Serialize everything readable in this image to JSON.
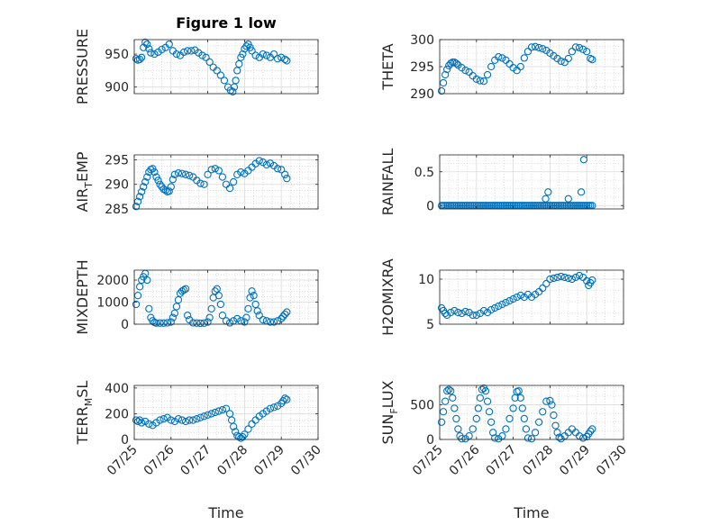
{
  "figure": {
    "title": "Figure 1 low",
    "marker_color": "#0072BD"
  },
  "chart_data": [
    {
      "type": "scatter",
      "ylabel": "PRESSURE",
      "ylabel_parts": [
        "PRESSURE"
      ],
      "xlabel": "",
      "xlim": [
        0,
        5
      ],
      "ylim": [
        890,
        972
      ],
      "yticks": [
        900,
        950
      ],
      "ytick_labels": [
        "900",
        "950"
      ],
      "show_xticklabels": false,
      "title": "Figure 1 low",
      "x": [
        0.05,
        0.1,
        0.15,
        0.2,
        0.25,
        0.3,
        0.35,
        0.4,
        0.45,
        0.55,
        0.65,
        0.75,
        0.85,
        0.95,
        1.05,
        1.15,
        1.25,
        1.35,
        1.45,
        1.55,
        1.65,
        1.75,
        1.85,
        1.95,
        2.05,
        2.15,
        2.25,
        2.35,
        2.45,
        2.55,
        2.62,
        2.68,
        2.72,
        2.76,
        2.8,
        2.85,
        2.9,
        2.95,
        3.0,
        3.05,
        3.1,
        3.15,
        3.2,
        3.3,
        3.4,
        3.5,
        3.6,
        3.7,
        3.8,
        3.9,
        4.0,
        4.1,
        4.15
      ],
      "y": [
        943,
        941,
        942,
        945,
        960,
        968,
        965,
        958,
        952,
        950,
        953,
        957,
        960,
        965,
        955,
        950,
        948,
        953,
        955,
        955,
        956,
        952,
        948,
        945,
        938,
        930,
        925,
        918,
        910,
        900,
        895,
        893,
        900,
        910,
        925,
        935,
        945,
        950,
        958,
        962,
        965,
        960,
        955,
        948,
        945,
        950,
        948,
        945,
        950,
        943,
        945,
        942,
        940
      ]
    },
    {
      "type": "scatter",
      "ylabel": "THETA",
      "ylabel_parts": [
        "THETA"
      ],
      "xlabel": "",
      "xlim": [
        0,
        5
      ],
      "ylim": [
        290,
        300
      ],
      "yticks": [
        290,
        295,
        300
      ],
      "ytick_labels": [
        "290",
        "295",
        "300"
      ],
      "show_xticklabels": false,
      "x": [
        0.05,
        0.1,
        0.15,
        0.2,
        0.25,
        0.3,
        0.35,
        0.4,
        0.45,
        0.5,
        0.6,
        0.7,
        0.8,
        0.9,
        1.0,
        1.1,
        1.2,
        1.3,
        1.4,
        1.5,
        1.6,
        1.7,
        1.8,
        1.9,
        2.0,
        2.1,
        2.2,
        2.3,
        2.4,
        2.5,
        2.6,
        2.7,
        2.8,
        2.9,
        3.0,
        3.1,
        3.2,
        3.3,
        3.4,
        3.5,
        3.6,
        3.7,
        3.8,
        3.9,
        4.0,
        4.1,
        4.15
      ],
      "y": [
        290.5,
        292,
        293.5,
        294.5,
        295.2,
        295.6,
        295.8,
        295.8,
        295.6,
        295.3,
        294.8,
        294.3,
        294,
        293.3,
        292.7,
        292.4,
        292.3,
        293.5,
        295,
        296.2,
        296.8,
        296.6,
        296.2,
        295.5,
        294.8,
        294.3,
        295,
        296.6,
        297.8,
        298.6,
        298.7,
        298.5,
        298.3,
        298,
        297.5,
        297,
        296.5,
        296,
        295.8,
        296.5,
        297.8,
        298.6,
        298.5,
        298.2,
        297.8,
        296.5,
        296.3
      ]
    },
    {
      "type": "scatter",
      "ylabel": "AIR_TEMP",
      "ylabel_parts": [
        "AIR",
        "T",
        "EMP"
      ],
      "xlabel": "",
      "xlim": [
        0,
        5
      ],
      "ylim": [
        285,
        296
      ],
      "yticks": [
        285,
        290,
        295
      ],
      "ytick_labels": [
        "285",
        "290",
        "295"
      ],
      "show_xticklabels": false,
      "x": [
        0.05,
        0.1,
        0.15,
        0.2,
        0.25,
        0.3,
        0.35,
        0.4,
        0.45,
        0.5,
        0.55,
        0.6,
        0.65,
        0.7,
        0.75,
        0.8,
        0.85,
        0.9,
        0.95,
        1.0,
        1.05,
        1.1,
        1.2,
        1.3,
        1.4,
        1.5,
        1.6,
        1.7,
        1.8,
        1.9,
        2.0,
        2.1,
        2.2,
        2.3,
        2.4,
        2.5,
        2.6,
        2.7,
        2.8,
        2.9,
        3.0,
        3.1,
        3.2,
        3.3,
        3.4,
        3.5,
        3.6,
        3.7,
        3.8,
        3.9,
        4.0,
        4.1,
        4.15
      ],
      "y": [
        285.5,
        286.5,
        287.5,
        288.5,
        289.5,
        290.5,
        291.5,
        292.5,
        293,
        293.2,
        292.5,
        291.5,
        290.8,
        290,
        289.5,
        289,
        288.8,
        288.5,
        288.6,
        289.5,
        291,
        292,
        292.3,
        292.2,
        292,
        291.8,
        291.5,
        290.8,
        290.2,
        290,
        292,
        293,
        293.2,
        292.8,
        291.5,
        290,
        289.2,
        290.5,
        292,
        292.5,
        292.2,
        292.8,
        293.5,
        294.2,
        294.8,
        294.5,
        294,
        294.3,
        293.8,
        293.2,
        293,
        292,
        291.2
      ]
    },
    {
      "type": "scatter",
      "ylabel": "RAINFALL",
      "ylabel_parts": [
        "RAINFALL"
      ],
      "xlabel": "",
      "xlim": [
        0,
        5
      ],
      "ylim": [
        -0.05,
        0.75
      ],
      "yticks": [
        0,
        0.5
      ],
      "ytick_labels": [
        "0",
        "0.5"
      ],
      "show_xticklabels": false,
      "baseline": {
        "x_start": 0.05,
        "x_end": 4.15,
        "step": 0.05,
        "y": 0
      },
      "x": [
        2.88,
        2.95,
        3.5,
        3.85,
        3.92
      ],
      "y": [
        0.1,
        0.2,
        0.1,
        0.2,
        0.68
      ]
    },
    {
      "type": "scatter",
      "ylabel": "MIXDEPTH",
      "ylabel_parts": [
        "MIXDEPTH"
      ],
      "xlabel": "",
      "xlim": [
        0,
        5
      ],
      "ylim": [
        0,
        2450
      ],
      "yticks": [
        0,
        1000,
        2000
      ],
      "ytick_labels": [
        "0",
        "1000",
        "2000"
      ],
      "show_xticklabels": false,
      "x": [
        0.05,
        0.1,
        0.15,
        0.2,
        0.25,
        0.3,
        0.35,
        0.4,
        0.45,
        0.5,
        0.55,
        0.6,
        0.7,
        0.8,
        0.9,
        1.0,
        1.05,
        1.1,
        1.15,
        1.2,
        1.25,
        1.3,
        1.35,
        1.4,
        1.45,
        1.5,
        1.6,
        1.7,
        1.8,
        1.9,
        2.0,
        2.05,
        2.1,
        2.15,
        2.2,
        2.25,
        2.3,
        2.35,
        2.4,
        2.5,
        2.6,
        2.7,
        2.8,
        2.9,
        3.0,
        3.05,
        3.1,
        3.15,
        3.2,
        3.25,
        3.3,
        3.35,
        3.4,
        3.5,
        3.6,
        3.7,
        3.8,
        3.9,
        4.0,
        4.05,
        4.1,
        4.15
      ],
      "y": [
        900,
        1300,
        1700,
        2000,
        2150,
        2300,
        2000,
        700,
        300,
        150,
        80,
        50,
        50,
        50,
        60,
        100,
        300,
        500,
        800,
        1100,
        1400,
        1500,
        1550,
        1600,
        400,
        200,
        60,
        50,
        40,
        50,
        100,
        300,
        700,
        1200,
        1500,
        1600,
        1300,
        900,
        400,
        150,
        60,
        150,
        250,
        150,
        100,
        300,
        700,
        1200,
        1500,
        1300,
        900,
        600,
        400,
        200,
        150,
        100,
        100,
        150,
        250,
        350,
        450,
        550
      ]
    },
    {
      "type": "scatter",
      "ylabel": "H2OMIXRA",
      "ylabel_parts": [
        "H2OMIXRA"
      ],
      "xlabel": "",
      "xlim": [
        0,
        5
      ],
      "ylim": [
        5,
        11
      ],
      "yticks": [
        5,
        10
      ],
      "ytick_labels": [
        "5",
        "10"
      ],
      "show_xticklabels": false,
      "x": [
        0.05,
        0.1,
        0.15,
        0.2,
        0.3,
        0.4,
        0.5,
        0.6,
        0.7,
        0.8,
        0.9,
        1.0,
        1.1,
        1.2,
        1.3,
        1.4,
        1.5,
        1.6,
        1.7,
        1.8,
        1.9,
        2.0,
        2.1,
        2.2,
        2.3,
        2.4,
        2.5,
        2.6,
        2.7,
        2.8,
        2.9,
        3.0,
        3.1,
        3.2,
        3.3,
        3.4,
        3.5,
        3.6,
        3.7,
        3.8,
        3.9,
        4.0,
        4.05,
        4.1,
        4.15
      ],
      "y": [
        6.8,
        6.5,
        6.2,
        6.0,
        6.3,
        6.5,
        6.3,
        6.2,
        6.4,
        6.3,
        6.0,
        6.0,
        6.2,
        6.5,
        6.3,
        6.6,
        6.8,
        7.0,
        7.2,
        7.4,
        7.6,
        7.8,
        8.0,
        8.2,
        8.0,
        8.3,
        8.0,
        8.3,
        8.6,
        9.0,
        9.5,
        10.0,
        10.1,
        10.2,
        10.3,
        10.2,
        10.1,
        10.0,
        10.2,
        10.4,
        10.2,
        9.8,
        9.3,
        9.6,
        9.9
      ]
    },
    {
      "type": "scatter",
      "ylabel": "TERR_MSL",
      "ylabel_parts": [
        "TERR",
        "M",
        "SL"
      ],
      "xlabel": "Time",
      "xlim": [
        0,
        5
      ],
      "ylim": [
        0,
        420
      ],
      "yticks": [
        0,
        200,
        400
      ],
      "ytick_labels": [
        "0",
        "200",
        "400"
      ],
      "show_xticklabels": true,
      "xticks": [
        0,
        1,
        2,
        3,
        4,
        5
      ],
      "xtick_labels": [
        "07/25",
        "07/26",
        "07/27",
        "07/28",
        "07/29",
        "07/30"
      ],
      "x": [
        0.05,
        0.1,
        0.15,
        0.2,
        0.3,
        0.4,
        0.5,
        0.6,
        0.7,
        0.8,
        0.9,
        1.0,
        1.1,
        1.2,
        1.3,
        1.4,
        1.5,
        1.6,
        1.7,
        1.8,
        1.9,
        2.0,
        2.1,
        2.2,
        2.3,
        2.4,
        2.5,
        2.6,
        2.65,
        2.7,
        2.75,
        2.8,
        2.85,
        2.9,
        2.95,
        3.0,
        3.1,
        3.2,
        3.3,
        3.4,
        3.5,
        3.6,
        3.7,
        3.8,
        3.9,
        4.0,
        4.05,
        4.1,
        4.15
      ],
      "y": [
        150,
        140,
        150,
        130,
        140,
        120,
        110,
        130,
        150,
        160,
        170,
        150,
        140,
        160,
        150,
        140,
        150,
        150,
        160,
        170,
        180,
        190,
        200,
        210,
        220,
        230,
        240,
        200,
        150,
        100,
        60,
        30,
        20,
        10,
        20,
        40,
        80,
        120,
        150,
        180,
        200,
        220,
        240,
        250,
        260,
        280,
        300,
        320,
        310
      ]
    },
    {
      "type": "scatter",
      "ylabel": "SUN_FLUX",
      "ylabel_parts": [
        "SUN",
        "F",
        "LUX"
      ],
      "xlabel": "Time",
      "xlim": [
        0,
        5
      ],
      "ylim": [
        0,
        780
      ],
      "yticks": [
        0,
        500
      ],
      "ytick_labels": [
        "0",
        "500"
      ],
      "show_xticklabels": true,
      "xticks": [
        0,
        1,
        2,
        3,
        4,
        5
      ],
      "xtick_labels": [
        "07/25",
        "07/26",
        "07/27",
        "07/28",
        "07/29",
        "07/30"
      ],
      "x": [
        0.05,
        0.1,
        0.15,
        0.2,
        0.25,
        0.3,
        0.35,
        0.4,
        0.45,
        0.5,
        0.55,
        0.6,
        0.7,
        0.8,
        0.9,
        1.0,
        1.05,
        1.1,
        1.15,
        1.2,
        1.25,
        1.3,
        1.35,
        1.4,
        1.45,
        1.5,
        1.6,
        1.7,
        1.8,
        1.9,
        2.0,
        2.05,
        2.1,
        2.15,
        2.2,
        2.25,
        2.3,
        2.35,
        2.4,
        2.5,
        2.6,
        2.7,
        2.8,
        2.9,
        3.0,
        3.05,
        3.1,
        3.15,
        3.2,
        3.25,
        3.3,
        3.4,
        3.5,
        3.6,
        3.7,
        3.8,
        3.9,
        4.0,
        4.05,
        4.1,
        4.15
      ],
      "y": [
        250,
        400,
        550,
        700,
        720,
        700,
        600,
        450,
        300,
        150,
        50,
        10,
        10,
        50,
        150,
        300,
        450,
        600,
        720,
        740,
        700,
        550,
        400,
        250,
        100,
        20,
        10,
        50,
        150,
        300,
        450,
        600,
        690,
        700,
        600,
        450,
        300,
        150,
        20,
        10,
        100,
        250,
        400,
        550,
        560,
        500,
        350,
        200,
        100,
        30,
        10,
        50,
        100,
        150,
        100,
        50,
        20,
        40,
        80,
        120,
        150
      ]
    }
  ]
}
